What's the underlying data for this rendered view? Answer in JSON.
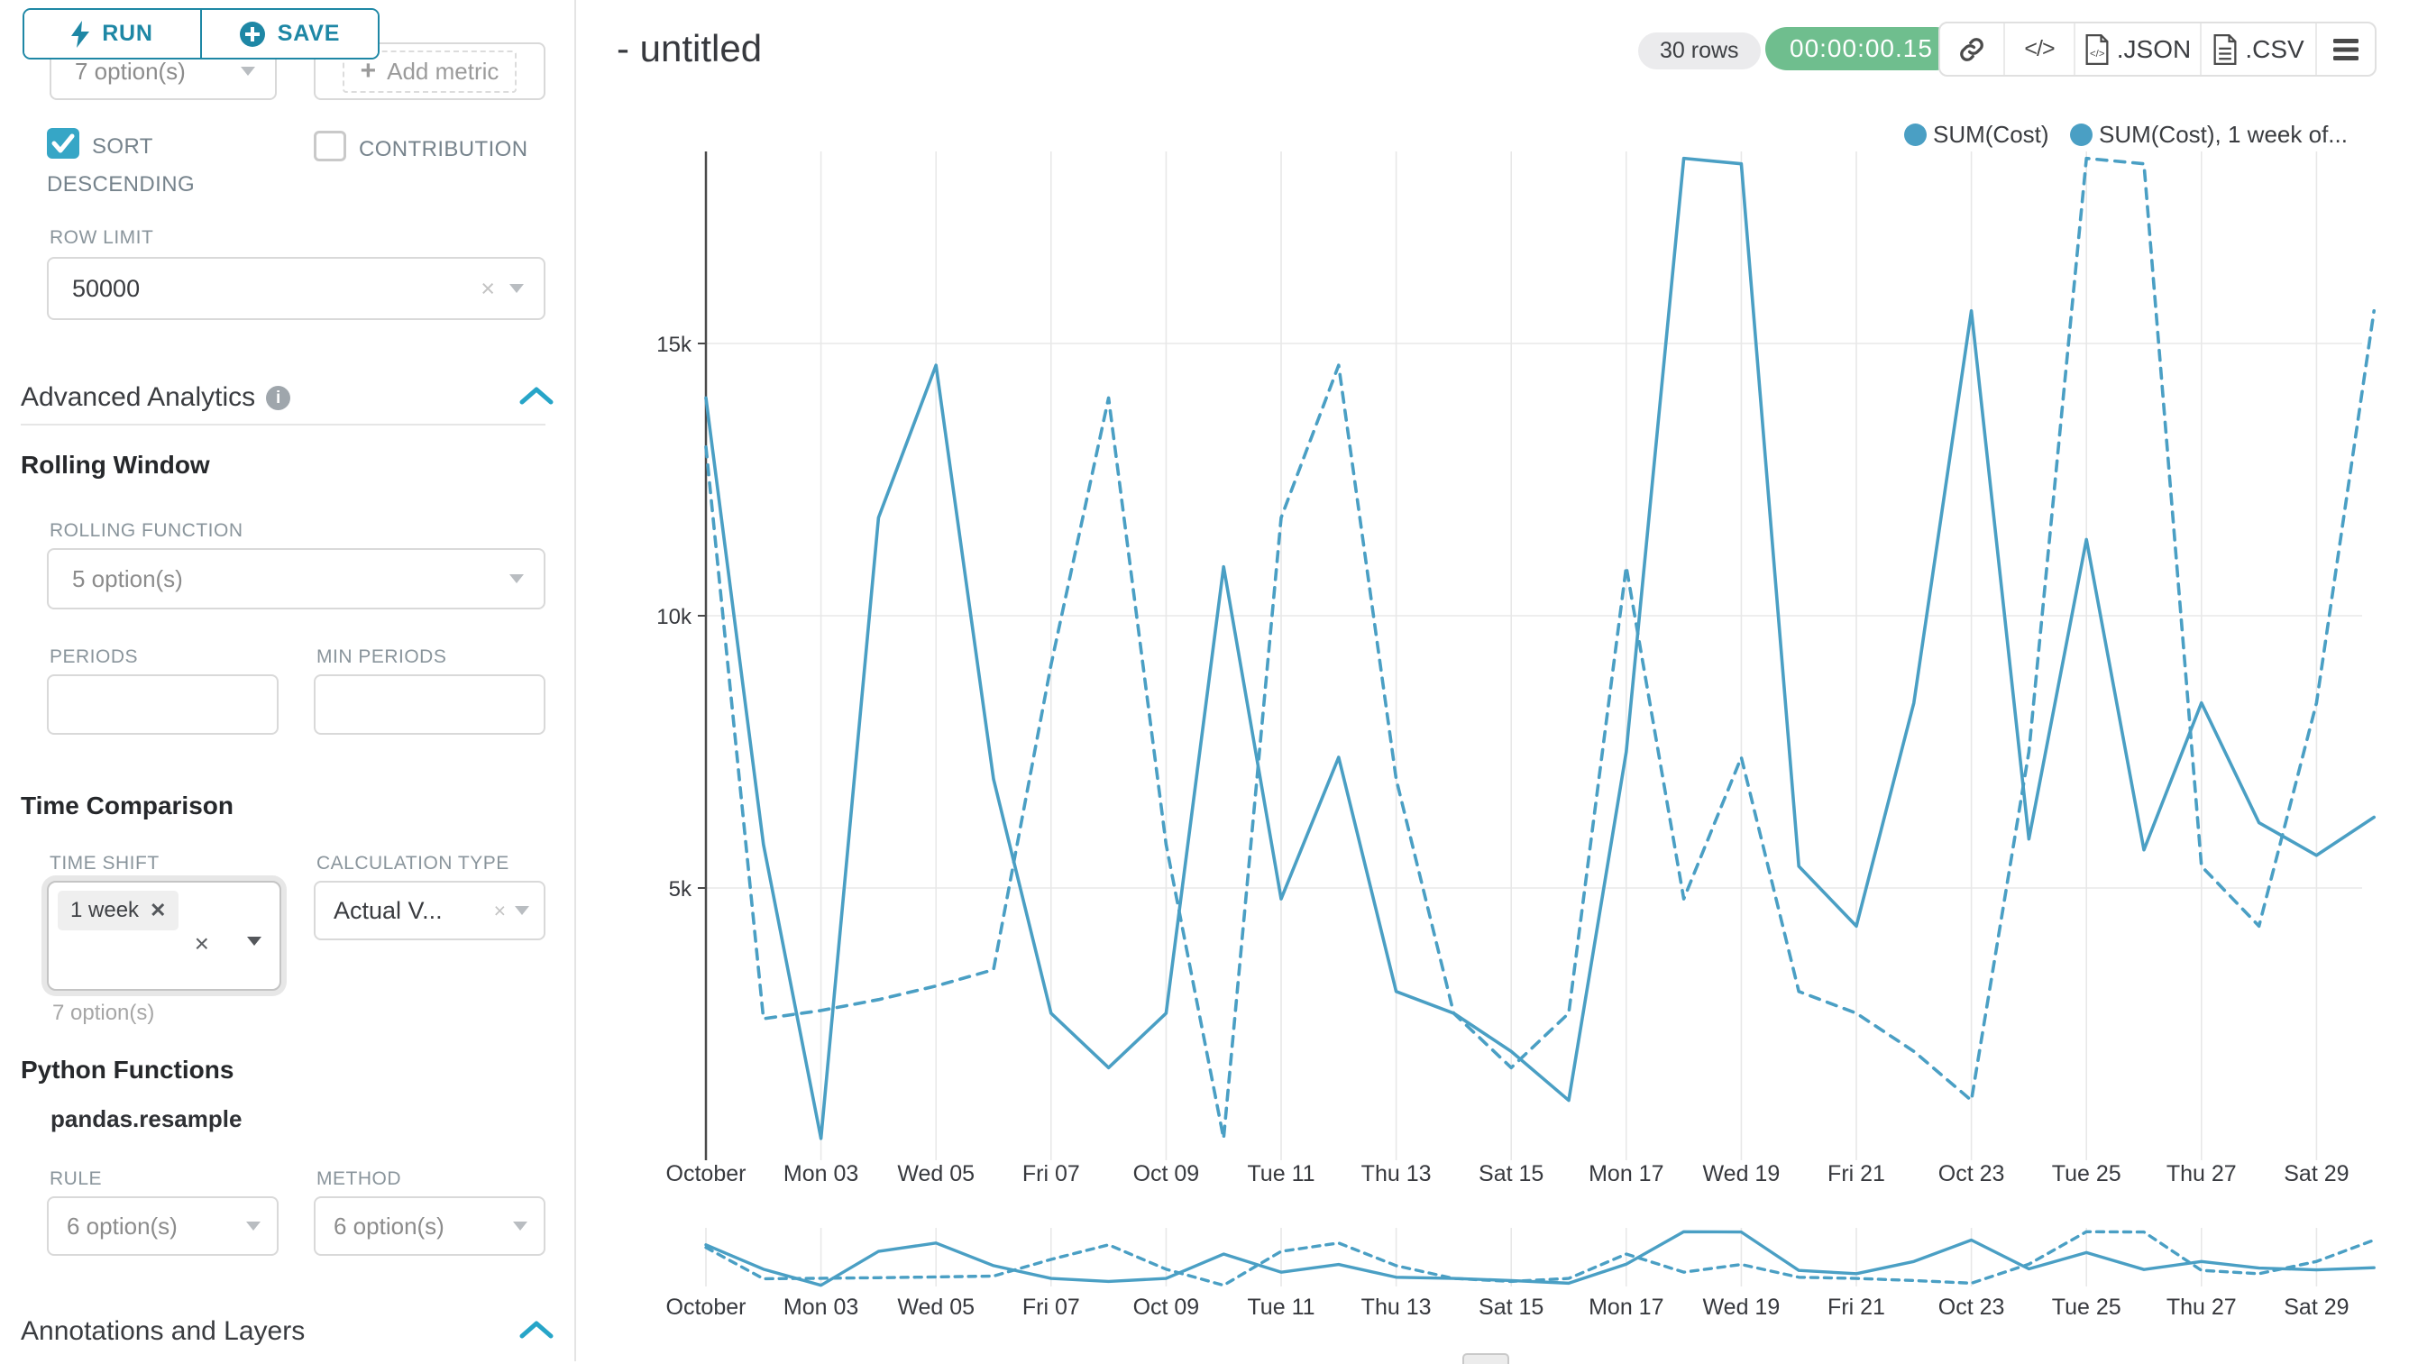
{
  "panel": {
    "run_label": "RUN",
    "save_label": "SAVE",
    "series_select_value": "7 option(s)",
    "add_metric_label": "Add metric",
    "sort_descending_label": "SORT DESCENDING",
    "contribution_label": "CONTRIBUTION",
    "row_limit_label": "ROW LIMIT",
    "row_limit_value": "50000",
    "advanced_analytics_title": "Advanced Analytics",
    "rolling_window_title": "Rolling Window",
    "rolling_function_label": "ROLLING FUNCTION",
    "rolling_function_value": "5 option(s)",
    "periods_label": "PERIODS",
    "min_periods_label": "MIN PERIODS",
    "time_comparison_title": "Time Comparison",
    "time_shift_label": "TIME SHIFT",
    "time_shift_tag": "1 week",
    "time_shift_hint": "7 option(s)",
    "calculation_type_label": "CALCULATION TYPE",
    "calculation_type_value": "Actual V...",
    "python_functions_title": "Python Functions",
    "resample_label": "pandas.resample",
    "rule_label": "RULE",
    "rule_value": "6 option(s)",
    "method_label": "METHOD",
    "method_value": "6 option(s)",
    "annotations_title": "Annotations and Layers"
  },
  "header": {
    "title": "- untitled",
    "rows_badge": "30 rows",
    "timer_badge": "00:00:00.15",
    "json_label": ".JSON",
    "csv_label": ".CSV"
  },
  "legend": {
    "items": [
      "SUM(Cost)",
      "SUM(Cost), 1 week of..."
    ]
  },
  "colors": {
    "primary_teal": "#1E87A5",
    "checkbox_teal": "#36A6C6",
    "chevron_teal": "#27A5C8",
    "line_teal": "#4A9FC4",
    "success_green": "#6FBE8E",
    "gridline": "#E8E8E8",
    "axis": "#4A4A4A"
  },
  "chart_data": {
    "type": "line",
    "title": "- untitled",
    "days": 30,
    "x_tick_days": [
      1,
      3,
      5,
      7,
      9,
      11,
      13,
      15,
      17,
      19,
      21,
      23,
      25,
      27,
      29
    ],
    "x_tick_labels": [
      "October",
      "Mon 03",
      "Wed 05",
      "Fri 07",
      "Oct 09",
      "Tue 11",
      "Thu 13",
      "Sat 15",
      "Mon 17",
      "Wed 19",
      "Fri 21",
      "Oct 23",
      "Tue 25",
      "Thu 27",
      "Sat 29"
    ],
    "y_tick_values": [
      5000,
      10000,
      15000
    ],
    "y_tick_labels": [
      "5k",
      "10k",
      "15k"
    ],
    "ylim": [
      0,
      18600
    ],
    "grid": true,
    "legend_position": "top-right",
    "color": "#4A9FC4",
    "series": [
      {
        "name": "SUM(Cost)",
        "line_style": "solid",
        "values": [
          14000,
          5800,
          400,
          11800,
          14600,
          7000,
          2700,
          1700,
          2700,
          10900,
          4800,
          7400,
          3100,
          2700,
          2000,
          1100,
          7500,
          18400,
          18300,
          5400,
          4300,
          8400,
          15600,
          5900,
          11400,
          5700,
          8400,
          6200,
          5600,
          6300
        ]
      },
      {
        "name": "SUM(Cost), 1 week offset",
        "line_style": "dashed",
        "values": [
          13100,
          2600,
          2750,
          2950,
          3200,
          3500,
          9100,
          14000,
          5800,
          400,
          11800,
          14600,
          7000,
          2700,
          1700,
          2700,
          10900,
          4800,
          7400,
          3100,
          2700,
          2000,
          1100,
          7500,
          18400,
          18300,
          5400,
          4300,
          8400,
          15600
        ]
      }
    ]
  }
}
